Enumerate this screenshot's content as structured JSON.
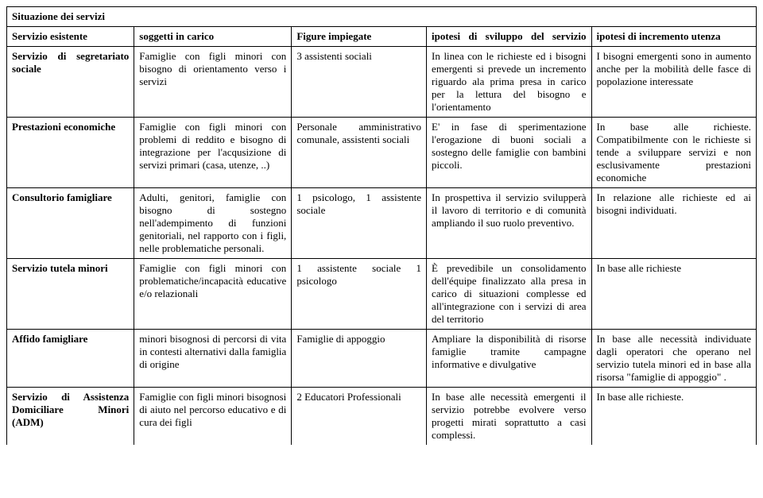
{
  "title": "Situazione dei servizi",
  "columns": {
    "c0": "Servizio esistente",
    "c1": "soggetti in carico",
    "c2": "Figure impiegate",
    "c3": "ipotesi di sviluppo del servizio",
    "c4": "ipotesi di incremento utenza"
  },
  "rows": [
    {
      "name": "Servizio di segretariato sociale",
      "name_justify_last": true,
      "c1": "Famiglie con figli minori con bisogno di orientamento verso i servizi",
      "c2": "3 assistenti sociali",
      "c3": "In linea con le richieste ed i bisogni emergenti si prevede un incremento riguardo ala prima presa in carico per la lettura del bisogno e l'orientamento",
      "c4": "I bisogni emergenti sono in aumento anche per la mobilità delle fasce di popolazione interessate"
    },
    {
      "name": "Prestazioni economiche",
      "c1": "Famiglie con figli minori con problemi di reddito e bisogno di integrazione per l'acqusizione di servizi primari (casa, utenze, ..)",
      "c2": "Personale amministrativo comunale, assistenti sociali",
      "c3": "E' in fase di sperimentazione l'erogazione di buoni sociali a sostegno delle famiglie con bambini piccoli.",
      "c4": "In base alle richieste. Compatibilmente con le richieste si tende a sviluppare servizi e non esclusivamente prestazioni economiche"
    },
    {
      "name": "Consultorio famigliare",
      "c1": "Adulti, genitori, famiglie con bisogno di sostegno nell'adempimento di funzioni genitoriali, nel rapporto con i figli, nelle problematiche personali.",
      "c2": "1 psicologo, 1 assistente sociale",
      "c3": "In prospettiva il servizio svilupperà il lavoro di territorio e di comunità ampliando il suo ruolo preventivo.",
      "c4": "In relazione alle richieste ed ai bisogni individuati."
    },
    {
      "name": "Servizio tutela minori",
      "c1": "Famiglie con figli minori con problematiche/incapacità educative e/o relazionali",
      "c2": "1 assistente sociale 1 psicologo",
      "c3": "È prevedibile un consolidamento dell'équipe finalizzato alla presa in carico di situazioni complesse ed all'integrazione con i servizi di area del territorio",
      "c4": "In base alle richieste"
    },
    {
      "name": "Affido famigliare",
      "c1": "minori bisognosi di percorsi di vita in contesti alternativi dalla famiglia di origine",
      "c2": "Famiglie di appoggio",
      "c3": "Ampliare la disponibilità di risorse famiglie tramite campagne informative e divulgative",
      "c4": "In base alle necessità individuate dagli operatori che operano nel servizio tutela minori ed in base alla risorsa \"famiglie di appoggio\" ."
    },
    {
      "name": "Servizio di Assistenza Domiciliare Minori (ADM)",
      "name_justify_last": true,
      "c1": "Famiglie con figli minori bisognosi di aiuto nel percorso educativo e di cura dei figli",
      "c2": "2 Educatori Professionali",
      "c3": "In base alle necessità emergenti il servizio potrebbe evolvere verso progetti mirati soprattutto a casi complessi.",
      "c4": "In base alle richieste.",
      "last": true
    }
  ],
  "layout": {
    "col_widths": [
      "17%",
      "21%",
      "18%",
      "22%",
      "22%"
    ]
  }
}
